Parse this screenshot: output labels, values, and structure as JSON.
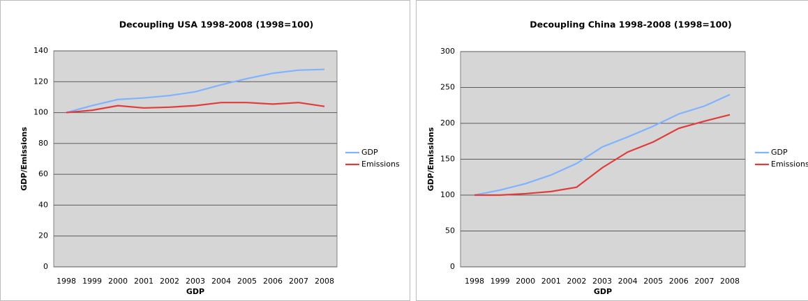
{
  "chart_data": [
    {
      "type": "line",
      "title": "Decoupling USA 1998-2008 (1998=100)",
      "x_label": "GDP",
      "y_label": "GDP/Emissions",
      "categories": [
        "1998",
        "1999",
        "2000",
        "2001",
        "2002",
        "2003",
        "2004",
        "2005",
        "2006",
        "2007",
        "2008"
      ],
      "series": [
        {
          "name": "GDP",
          "color": "#7fb2ff",
          "values": [
            100,
            104.5,
            108.5,
            109.5,
            111,
            113.5,
            118,
            122,
            125.5,
            127.5,
            128
          ]
        },
        {
          "name": "Emissions",
          "color": "#e03c3c",
          "values": [
            100,
            101.5,
            104.5,
            103,
            103.5,
            104.5,
            106.5,
            106.5,
            105.5,
            106.5,
            104
          ]
        }
      ],
      "ylim": [
        0,
        140
      ],
      "yticks": [
        0,
        20,
        40,
        60,
        80,
        100,
        120,
        140
      ],
      "grid": true,
      "legend": "right"
    },
    {
      "type": "line",
      "title": "Decoupling China 1998-2008 (1998=100)",
      "x_label": "GDP",
      "y_label": "GDP/Emissions",
      "categories": [
        "1998",
        "1999",
        "2000",
        "2001",
        "2002",
        "2003",
        "2004",
        "2005",
        "2006",
        "2007",
        "2008"
      ],
      "series": [
        {
          "name": "GDP",
          "color": "#7fb2ff",
          "values": [
            100,
            107,
            116,
            128,
            144,
            167,
            181,
            196,
            213,
            224,
            240
          ]
        },
        {
          "name": "Emissions",
          "color": "#e03c3c",
          "values": [
            100,
            100,
            102,
            105,
            111,
            138,
            160,
            174,
            193,
            203,
            212
          ]
        }
      ],
      "ylim": [
        0,
        300
      ],
      "yticks": [
        0,
        50,
        100,
        150,
        200,
        250,
        300
      ],
      "grid": true,
      "legend": "right"
    }
  ]
}
